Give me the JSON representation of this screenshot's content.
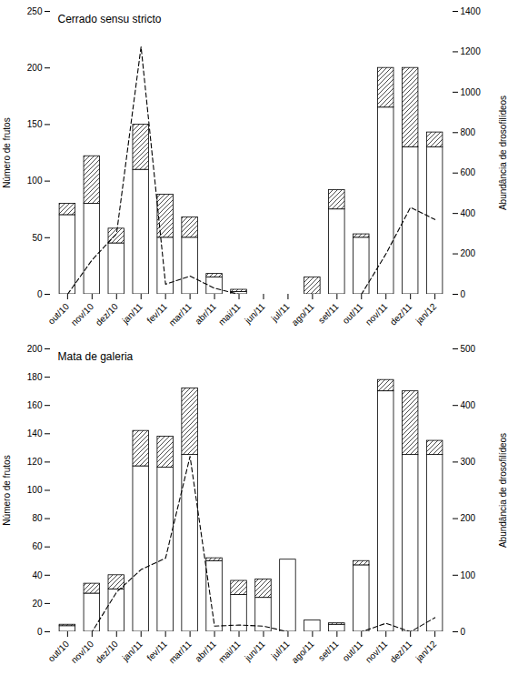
{
  "chart_data": [
    {
      "type": "bar",
      "title": "Cerrado sensu stricto",
      "categories": [
        "out/10",
        "nov/10",
        "dez/10",
        "jan/11",
        "fev/11",
        "mar/11",
        "abr/11",
        "mai/11",
        "jun/11",
        "jul/11",
        "ago/11",
        "set/11",
        "out/11",
        "nov/11",
        "dez/11",
        "jan/12"
      ],
      "stacked": true,
      "grid": false,
      "ylabel": "Número de frutos",
      "y2label": "Abundância de drosofilídeos",
      "ylim": [
        0,
        250
      ],
      "yticks": [
        0,
        50,
        100,
        150,
        200,
        250
      ],
      "y2lim": [
        0,
        1400
      ],
      "y2ticks": [
        0,
        200,
        400,
        600,
        800,
        1000,
        1200,
        1400
      ],
      "series": [
        {
          "type": "bar",
          "color": "white",
          "values": [
            70,
            80,
            45,
            110,
            50,
            50,
            15,
            2,
            0,
            0,
            0,
            75,
            50,
            165,
            130,
            130
          ]
        },
        {
          "type": "bar",
          "color": "white",
          "values": [
            10,
            42,
            13,
            40,
            38,
            18,
            3,
            2,
            0,
            0,
            15,
            17,
            3,
            35,
            70,
            13
          ]
        },
        {
          "type": "line",
          "axis": "y2",
          "color": "black",
          "line_style": "dashed",
          "values": [
            0,
            170,
            300,
            1225,
            50,
            90,
            30,
            0,
            0,
            0,
            0,
            0,
            0,
            200,
            430,
            370
          ]
        }
      ]
    },
    {
      "type": "bar",
      "title": "Mata de galeria",
      "categories": [
        "out/10",
        "nov/10",
        "dez/10",
        "jan/11",
        "fev/11",
        "mar/11",
        "abr/11",
        "mai/11",
        "jun/11",
        "jul/11",
        "ago/11",
        "set/11",
        "out/11",
        "nov/11",
        "dez/11",
        "jan/12"
      ],
      "stacked": true,
      "grid": false,
      "ylabel": "Número de frutos",
      "y2label": "Abundância de drosofilídeos",
      "ylim": [
        0,
        200
      ],
      "yticks": [
        0,
        20,
        40,
        60,
        80,
        100,
        120,
        140,
        160,
        180,
        200
      ],
      "y2lim": [
        0,
        500
      ],
      "y2ticks": [
        0,
        100,
        200,
        300,
        400,
        500
      ],
      "series": [
        {
          "type": "bar",
          "color": "white",
          "values": [
            4,
            27,
            30,
            117,
            116,
            125,
            50,
            26,
            24,
            51,
            8,
            5,
            47,
            170,
            125,
            125
          ]
        },
        {
          "type": "bar",
          "color": "white",
          "values": [
            1,
            7,
            10,
            25,
            22,
            47,
            2,
            10,
            13,
            0,
            0,
            1,
            3,
            8,
            45,
            10
          ]
        },
        {
          "type": "line",
          "axis": "y2",
          "color": "black",
          "line_style": "dashed",
          "values": [
            0,
            0,
            70,
            110,
            130,
            310,
            10,
            12,
            10,
            0,
            0,
            0,
            0,
            15,
            0,
            25
          ]
        }
      ]
    }
  ]
}
